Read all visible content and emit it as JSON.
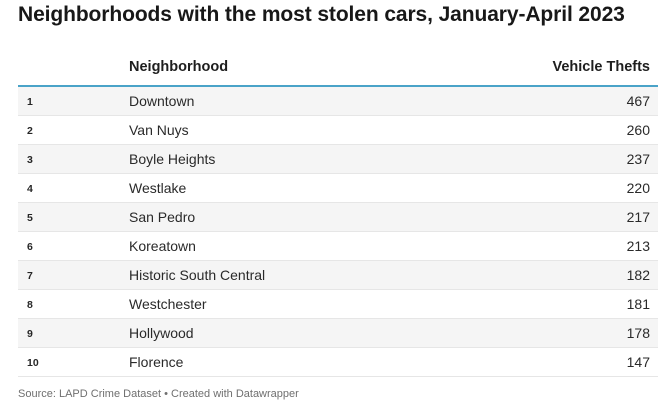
{
  "chart_data": {
    "type": "table",
    "title": "Neighborhoods with the most stolen cars, January-April 2023",
    "columns": [
      "",
      "Neighborhood",
      "Vehicle Thefts"
    ],
    "rows": [
      {
        "rank": "1",
        "neighborhood": "Downtown",
        "value": "467"
      },
      {
        "rank": "2",
        "neighborhood": "Van Nuys",
        "value": "260"
      },
      {
        "rank": "3",
        "neighborhood": "Boyle Heights",
        "value": "237"
      },
      {
        "rank": "4",
        "neighborhood": "Westlake",
        "value": "220"
      },
      {
        "rank": "5",
        "neighborhood": "San Pedro",
        "value": "217"
      },
      {
        "rank": "6",
        "neighborhood": "Koreatown",
        "value": "213"
      },
      {
        "rank": "7",
        "neighborhood": "Historic South Central",
        "value": "182"
      },
      {
        "rank": "8",
        "neighborhood": "Westchester",
        "value": "181"
      },
      {
        "rank": "9",
        "neighborhood": "Hollywood",
        "value": "178"
      },
      {
        "rank": "10",
        "neighborhood": "Florence",
        "value": "147"
      }
    ],
    "footer": "Source: LAPD Crime Dataset • Created with Datawrapper",
    "colors": {
      "header_rule": "#4aa3c8",
      "stripe": "#f5f5f5"
    }
  }
}
